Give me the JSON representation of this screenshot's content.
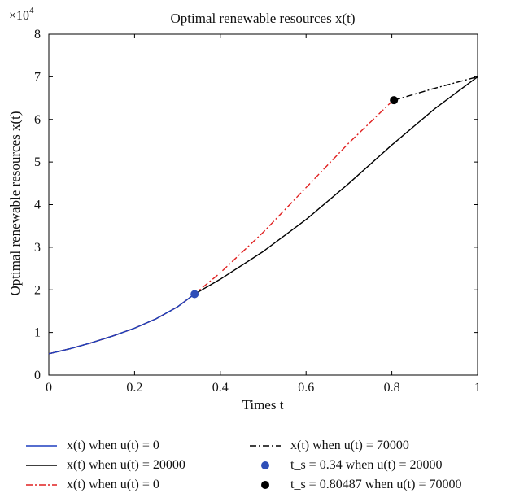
{
  "chart_data": {
    "type": "line",
    "title": "Optimal renewable resources x(t)",
    "xlabel": "Times t",
    "ylabel": "Optimal renewable resources x(t)",
    "y_scale_label": "×10",
    "y_scale_exp": "4",
    "xlim": [
      0,
      1
    ],
    "ylim": [
      0,
      8
    ],
    "xticks": [
      0,
      0.2,
      0.4,
      0.6,
      0.8,
      1
    ],
    "xtick_labels": [
      "0",
      "0.2",
      "0.4",
      "0.6",
      "0.8",
      "1"
    ],
    "yticks": [
      0,
      1,
      2,
      3,
      4,
      5,
      6,
      7,
      8
    ],
    "ytick_labels": [
      "0",
      "1",
      "2",
      "3",
      "4",
      "5",
      "6",
      "7",
      "8"
    ],
    "grid": false,
    "legend_position": "below",
    "series": [
      {
        "name": "x(t) when u(t) = 0",
        "color": "#1f3fbf",
        "style": "solid",
        "x": [
          0,
          0.05,
          0.1,
          0.15,
          0.2,
          0.25,
          0.3,
          0.34
        ],
        "y": [
          0.5,
          0.62,
          0.76,
          0.92,
          1.1,
          1.32,
          1.6,
          1.9
        ]
      },
      {
        "name": "x(t) when u(t) = 20000",
        "color": "#000000",
        "style": "solid",
        "x": [
          0,
          0.05,
          0.1,
          0.15,
          0.2,
          0.25,
          0.3,
          0.34,
          0.4,
          0.5,
          0.6,
          0.7,
          0.8,
          0.9,
          1.0
        ],
        "y": [
          0.5,
          0.62,
          0.76,
          0.92,
          1.1,
          1.32,
          1.6,
          1.9,
          2.25,
          2.9,
          3.65,
          4.5,
          5.4,
          6.25,
          7.0
        ]
      },
      {
        "name": "x(t) when u(t) = 0",
        "color": "#e02020",
        "style": "dashdot",
        "x": [
          0,
          0.05,
          0.1,
          0.15,
          0.2,
          0.25,
          0.3,
          0.34,
          0.4,
          0.5,
          0.6,
          0.7,
          0.8,
          0.80487
        ],
        "y": [
          0.5,
          0.62,
          0.76,
          0.92,
          1.1,
          1.32,
          1.6,
          1.9,
          2.4,
          3.35,
          4.4,
          5.45,
          6.42,
          6.45
        ]
      },
      {
        "name": "x(t) when u(t) = 70000",
        "color": "#000000",
        "style": "dashdot",
        "x": [
          0.80487,
          0.9,
          1.0
        ],
        "y": [
          6.45,
          6.73,
          7.0
        ]
      }
    ],
    "points": [
      {
        "name": "t_s = 0.34 when u(t) = 20000",
        "x": 0.34,
        "y": 1.9,
        "color": "#2f4fb8"
      },
      {
        "name": "t_s = 0.80487 when u(t) = 70000",
        "x": 0.80487,
        "y": 6.45,
        "color": "#000000"
      }
    ]
  },
  "legend": [
    {
      "sym": "line",
      "color": "#1f3fbf",
      "style": "solid",
      "label": "x(t) when u(t) = 0"
    },
    {
      "sym": "line",
      "color": "#000000",
      "style": "solid",
      "label": "x(t) when u(t) = 20000"
    },
    {
      "sym": "line",
      "color": "#e02020",
      "style": "dashdot",
      "label": "x(t) when u(t) = 0"
    },
    {
      "sym": "line",
      "color": "#000000",
      "style": "dashdot",
      "label": "x(t) when u(t) = 70000"
    },
    {
      "sym": "dot",
      "color": "#2f4fb8",
      "label": "t_s = 0.34 when u(t) = 20000"
    },
    {
      "sym": "dot",
      "color": "#000000",
      "label": "t_s = 0.80487 when u(t) = 70000"
    }
  ]
}
